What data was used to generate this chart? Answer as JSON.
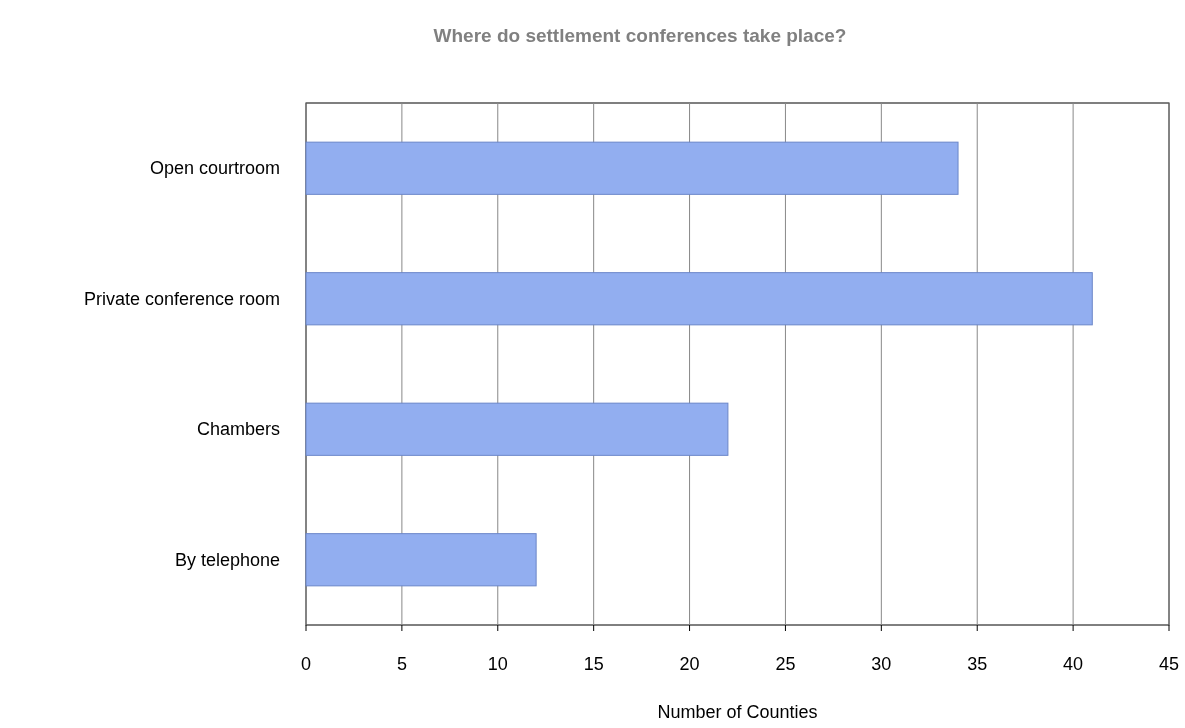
{
  "chart_data": {
    "type": "bar",
    "orientation": "horizontal",
    "title": "Where do settlement conferences take place?",
    "xlabel": "Number of Counties",
    "categories": [
      "Open courtroom",
      "Private conference room",
      "Chambers",
      "By telephone"
    ],
    "values": [
      34,
      41,
      22,
      12
    ],
    "color": "#92aef0",
    "xlim": [
      0,
      45
    ],
    "xticks": [
      0,
      5,
      10,
      15,
      20,
      25,
      30,
      35,
      40,
      45
    ],
    "grid": "x"
  }
}
